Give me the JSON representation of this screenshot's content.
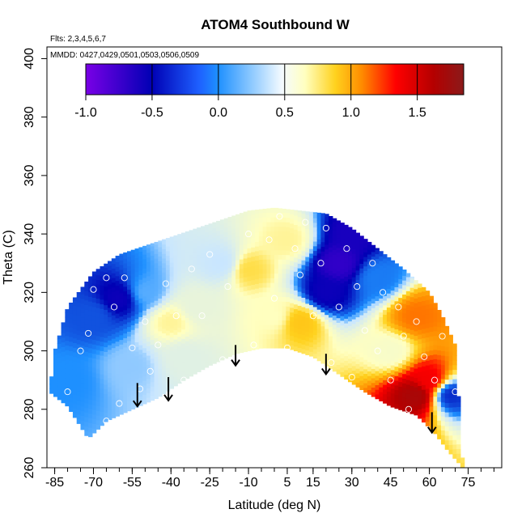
{
  "chart_data": {
    "type": "heatmap",
    "title": "ATOM4 Southbound W",
    "xlabel": "Latitude (deg N)",
    "ylabel": "Theta (C)",
    "flights_label": "Flts: 2,3,4,5,6,7",
    "dates_label": "MMDD: 0427,0429,0501,0503,0506,0509",
    "xlim": [
      -88,
      88
    ],
    "ylim": [
      260,
      404
    ],
    "x_ticks": [
      -85,
      -70,
      -55,
      -40,
      -25,
      -10,
      5,
      15,
      30,
      45,
      60,
      75
    ],
    "y_ticks": [
      260,
      280,
      300,
      320,
      340,
      360,
      380,
      400
    ],
    "colorbar": {
      "range": [
        -1.0,
        1.85
      ],
      "ticks": [
        -1.0,
        -0.5,
        0.0,
        0.5,
        1.0,
        1.5
      ],
      "tick_labels": [
        "-1.0",
        "-0.5",
        "0.0",
        "0.5",
        "1.0",
        "1.5"
      ],
      "colors": [
        "#7a00e6",
        "#0000b4",
        "#1e90ff",
        "#c9e6ff",
        "#ffffc0",
        "#ffd21e",
        "#ff8c00",
        "#ff0000",
        "#b40000",
        "#8b1a1a"
      ]
    },
    "coverage_envelope": {
      "top": [
        [
          -87,
          286
        ],
        [
          -85,
          300
        ],
        [
          -80,
          315
        ],
        [
          -70,
          327
        ],
        [
          -60,
          333
        ],
        [
          -50,
          336
        ],
        [
          -40,
          339
        ],
        [
          -30,
          342
        ],
        [
          -20,
          345
        ],
        [
          -10,
          348
        ],
        [
          0,
          349
        ],
        [
          10,
          348
        ],
        [
          20,
          347
        ],
        [
          30,
          342
        ],
        [
          40,
          335
        ],
        [
          50,
          328
        ],
        [
          60,
          320
        ],
        [
          65,
          312
        ],
        [
          70,
          302
        ],
        [
          73,
          260
        ]
      ],
      "bottom": [
        [
          -87,
          286
        ],
        [
          -80,
          281
        ],
        [
          -72,
          270
        ],
        [
          -65,
          276
        ],
        [
          -55,
          280
        ],
        [
          -45,
          284
        ],
        [
          -35,
          290
        ],
        [
          -25,
          295
        ],
        [
          -15,
          299
        ],
        [
          -5,
          301
        ],
        [
          5,
          301
        ],
        [
          15,
          298
        ],
        [
          25,
          292
        ],
        [
          35,
          286
        ],
        [
          45,
          281
        ],
        [
          55,
          278
        ],
        [
          62,
          272
        ],
        [
          67,
          266
        ],
        [
          73,
          260
        ]
      ]
    },
    "field_points": [
      {
        "lat": -70,
        "theta": 312,
        "w": -0.3
      },
      {
        "lat": -60,
        "theta": 318,
        "w": -0.55
      },
      {
        "lat": -50,
        "theta": 320,
        "w": -0.1
      },
      {
        "lat": -40,
        "theta": 310,
        "w": 0.4
      },
      {
        "lat": -30,
        "theta": 315,
        "w": 0.2
      },
      {
        "lat": -20,
        "theta": 330,
        "w": 0.0
      },
      {
        "lat": -10,
        "theta": 328,
        "w": 0.5
      },
      {
        "lat": 0,
        "theta": 312,
        "w": 0.35
      },
      {
        "lat": 10,
        "theta": 310,
        "w": 0.6
      },
      {
        "lat": 20,
        "theta": 320,
        "w": -0.55
      },
      {
        "lat": 25,
        "theta": 330,
        "w": -0.7
      },
      {
        "lat": 30,
        "theta": 340,
        "w": -0.6
      },
      {
        "lat": 40,
        "theta": 325,
        "w": -0.2
      },
      {
        "lat": 55,
        "theta": 312,
        "w": 0.9
      },
      {
        "lat": 55,
        "theta": 285,
        "w": 1.6
      },
      {
        "lat": 60,
        "theta": 290,
        "w": 1.2
      },
      {
        "lat": -80,
        "theta": 290,
        "w": -0.15
      },
      {
        "lat": -55,
        "theta": 295,
        "w": -0.05
      },
      {
        "lat": -35,
        "theta": 298,
        "w": 0.15
      },
      {
        "lat": 5,
        "theta": 338,
        "w": 0.4
      },
      {
        "lat": 45,
        "theta": 300,
        "w": 0.3
      },
      {
        "lat": 68,
        "theta": 285,
        "w": -0.4
      }
    ],
    "observations": [
      {
        "lat": -80,
        "theta": 286
      },
      {
        "lat": -75,
        "theta": 300
      },
      {
        "lat": -72,
        "theta": 306
      },
      {
        "lat": -70,
        "theta": 321
      },
      {
        "lat": -65,
        "theta": 325
      },
      {
        "lat": -62,
        "theta": 315
      },
      {
        "lat": -58,
        "theta": 325
      },
      {
        "lat": -55,
        "theta": 301
      },
      {
        "lat": -50,
        "theta": 310
      },
      {
        "lat": -48,
        "theta": 293
      },
      {
        "lat": -45,
        "theta": 302
      },
      {
        "lat": -42,
        "theta": 323
      },
      {
        "lat": -38,
        "theta": 312
      },
      {
        "lat": -35,
        "theta": 290
      },
      {
        "lat": -32,
        "theta": 328
      },
      {
        "lat": -28,
        "theta": 312
      },
      {
        "lat": -25,
        "theta": 333
      },
      {
        "lat": -20,
        "theta": 297
      },
      {
        "lat": -18,
        "theta": 322
      },
      {
        "lat": -10,
        "theta": 340
      },
      {
        "lat": -8,
        "theta": 302
      },
      {
        "lat": -2,
        "theta": 338
      },
      {
        "lat": 0,
        "theta": 318
      },
      {
        "lat": 2,
        "theta": 346
      },
      {
        "lat": 5,
        "theta": 301
      },
      {
        "lat": 8,
        "theta": 335
      },
      {
        "lat": 10,
        "theta": 326
      },
      {
        "lat": 12,
        "theta": 344
      },
      {
        "lat": 15,
        "theta": 312
      },
      {
        "lat": 18,
        "theta": 330
      },
      {
        "lat": 20,
        "theta": 342
      },
      {
        "lat": 22,
        "theta": 296
      },
      {
        "lat": 25,
        "theta": 315
      },
      {
        "lat": 28,
        "theta": 335
      },
      {
        "lat": 30,
        "theta": 291
      },
      {
        "lat": 32,
        "theta": 322
      },
      {
        "lat": 35,
        "theta": 307
      },
      {
        "lat": 38,
        "theta": 330
      },
      {
        "lat": 40,
        "theta": 300
      },
      {
        "lat": 42,
        "theta": 320
      },
      {
        "lat": 45,
        "theta": 290
      },
      {
        "lat": 48,
        "theta": 315
      },
      {
        "lat": 50,
        "theta": 305
      },
      {
        "lat": 52,
        "theta": 280
      },
      {
        "lat": 55,
        "theta": 310
      },
      {
        "lat": 58,
        "theta": 298
      },
      {
        "lat": 60,
        "theta": 325
      },
      {
        "lat": 62,
        "theta": 290
      },
      {
        "lat": -60,
        "theta": 282
      },
      {
        "lat": -65,
        "theta": 276
      },
      {
        "lat": -52,
        "theta": 287
      },
      {
        "lat": -78,
        "theta": 320
      },
      {
        "lat": -68,
        "theta": 330
      },
      {
        "lat": 65,
        "theta": 305
      },
      {
        "lat": 70,
        "theta": 286
      }
    ],
    "arrows": [
      {
        "lat": -53,
        "theta_top": 289,
        "theta_tip": 281
      },
      {
        "lat": -41,
        "theta_top": 291,
        "theta_tip": 283
      },
      {
        "lat": -15,
        "theta_top": 302,
        "theta_tip": 295
      },
      {
        "lat": 20,
        "theta_top": 299,
        "theta_tip": 292
      },
      {
        "lat": 61,
        "theta_top": 279,
        "theta_tip": 272
      }
    ]
  }
}
